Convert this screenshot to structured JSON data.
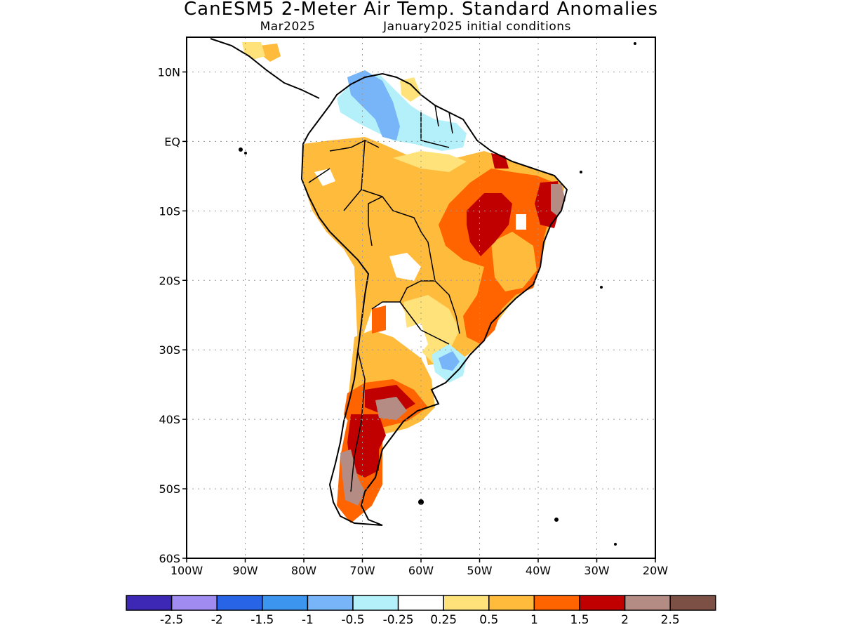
{
  "title": "CanESM5 2-Meter Air Temp. Standard Anomalies",
  "subtitle_left": "Mar2025",
  "subtitle_right": "January2025 initial conditions",
  "map": {
    "lon_range": [
      -100,
      -20
    ],
    "lat_range": [
      -60,
      15
    ],
    "lat_ticks": [
      {
        "value": 10,
        "label": "10N"
      },
      {
        "value": 0,
        "label": "EQ"
      },
      {
        "value": -10,
        "label": "10S"
      },
      {
        "value": -20,
        "label": "20S"
      },
      {
        "value": -30,
        "label": "30S"
      },
      {
        "value": -40,
        "label": "40S"
      },
      {
        "value": -50,
        "label": "50S"
      },
      {
        "value": -60,
        "label": "60S"
      }
    ],
    "lon_ticks": [
      {
        "value": -100,
        "label": "100W"
      },
      {
        "value": -90,
        "label": "90W"
      },
      {
        "value": -80,
        "label": "80W"
      },
      {
        "value": -70,
        "label": "70W"
      },
      {
        "value": -60,
        "label": "60W"
      },
      {
        "value": -50,
        "label": "50W"
      },
      {
        "value": -40,
        "label": "40W"
      },
      {
        "value": -30,
        "label": "30W"
      },
      {
        "value": -20,
        "label": "20W"
      }
    ],
    "grid": "dotted"
  },
  "colorbar": {
    "colors": [
      "#3c28b4",
      "#a08cf0",
      "#2864e6",
      "#3c96f0",
      "#78b4f8",
      "#b4f0fa",
      "#ffffff",
      "#ffe27a",
      "#ffbb3c",
      "#ff6400",
      "#c00000",
      "#b48c84",
      "#7c5044"
    ],
    "labels": [
      "-2.5",
      "-2",
      "-1.5",
      "-1",
      "-0.5",
      "-0.25",
      "0.25",
      "0.5",
      "1",
      "1.5",
      "2",
      "2.5"
    ]
  },
  "colors": {
    "land_outline": "#000000",
    "positive_weak": "#ffe27a",
    "positive_mod": "#ffbb3c",
    "positive_strong": "#ff6400",
    "positive_vstrong": "#c00000",
    "positive_extreme": "#b48c84",
    "negative_weak": "#b4f0fa",
    "negative_mod": "#78b4f8"
  }
}
